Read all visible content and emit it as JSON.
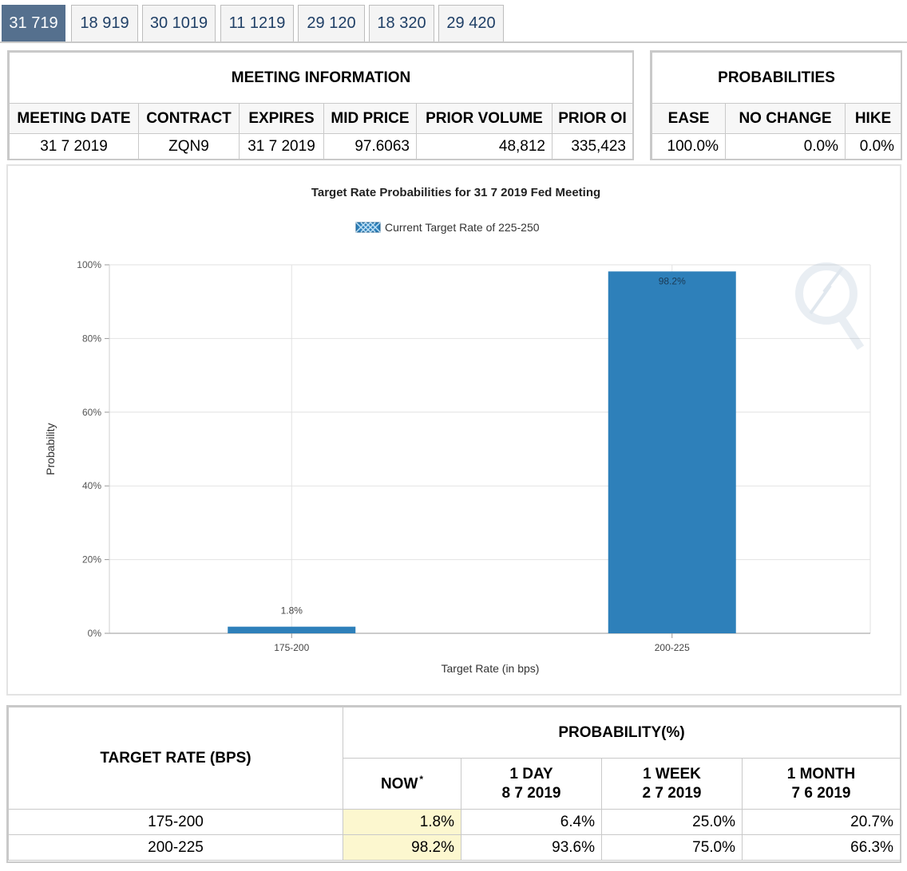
{
  "tabs": [
    "31 719",
    "18 919",
    "30 1019",
    "11 1219",
    "29 120",
    "18 320",
    "29 420"
  ],
  "active_tab": 0,
  "meeting_info": {
    "title": "MEETING INFORMATION",
    "headers": [
      "MEETING DATE",
      "CONTRACT",
      "EXPIRES",
      "MID PRICE",
      "PRIOR VOLUME",
      "PRIOR OI"
    ],
    "values": [
      "31 7 2019",
      "ZQN9",
      "31 7 2019",
      "97.6063",
      "48,812",
      "335,423"
    ]
  },
  "probabilities": {
    "title": "PROBABILITIES",
    "headers": [
      "EASE",
      "NO CHANGE",
      "HIKE"
    ],
    "values": [
      "100.0%",
      "0.0%",
      "0.0%"
    ]
  },
  "chart_data": {
    "type": "bar",
    "title": "Target Rate Probabilities for 31 7 2019 Fed Meeting",
    "legend": "Current Target Rate of 225-250",
    "xlabel": "Target Rate (in bps)",
    "ylabel": "Probability",
    "categories": [
      "175-200",
      "200-225"
    ],
    "values": [
      1.8,
      98.2
    ],
    "data_labels": [
      "1.8%",
      "98.2%"
    ],
    "yticks": [
      "0%",
      "20%",
      "40%",
      "60%",
      "80%",
      "100%"
    ],
    "ylim": [
      0,
      100
    ],
    "bar_color": "#2e80ba"
  },
  "rate_table": {
    "target_header": "TARGET RATE (BPS)",
    "prob_header": "PROBABILITY(%)",
    "now_label": "NOW",
    "now_mark": "*",
    "periods": [
      {
        "label": "1 DAY",
        "date": "8 7 2019"
      },
      {
        "label": "1 WEEK",
        "date": "2 7 2019"
      },
      {
        "label": "1 MONTH",
        "date": "7 6 2019"
      }
    ],
    "rows": [
      {
        "rate": "175-200",
        "now": "1.8%",
        "day": "6.4%",
        "week": "25.0%",
        "month": "20.7%"
      },
      {
        "rate": "200-225",
        "now": "98.2%",
        "day": "93.6%",
        "week": "75.0%",
        "month": "66.3%"
      }
    ]
  }
}
